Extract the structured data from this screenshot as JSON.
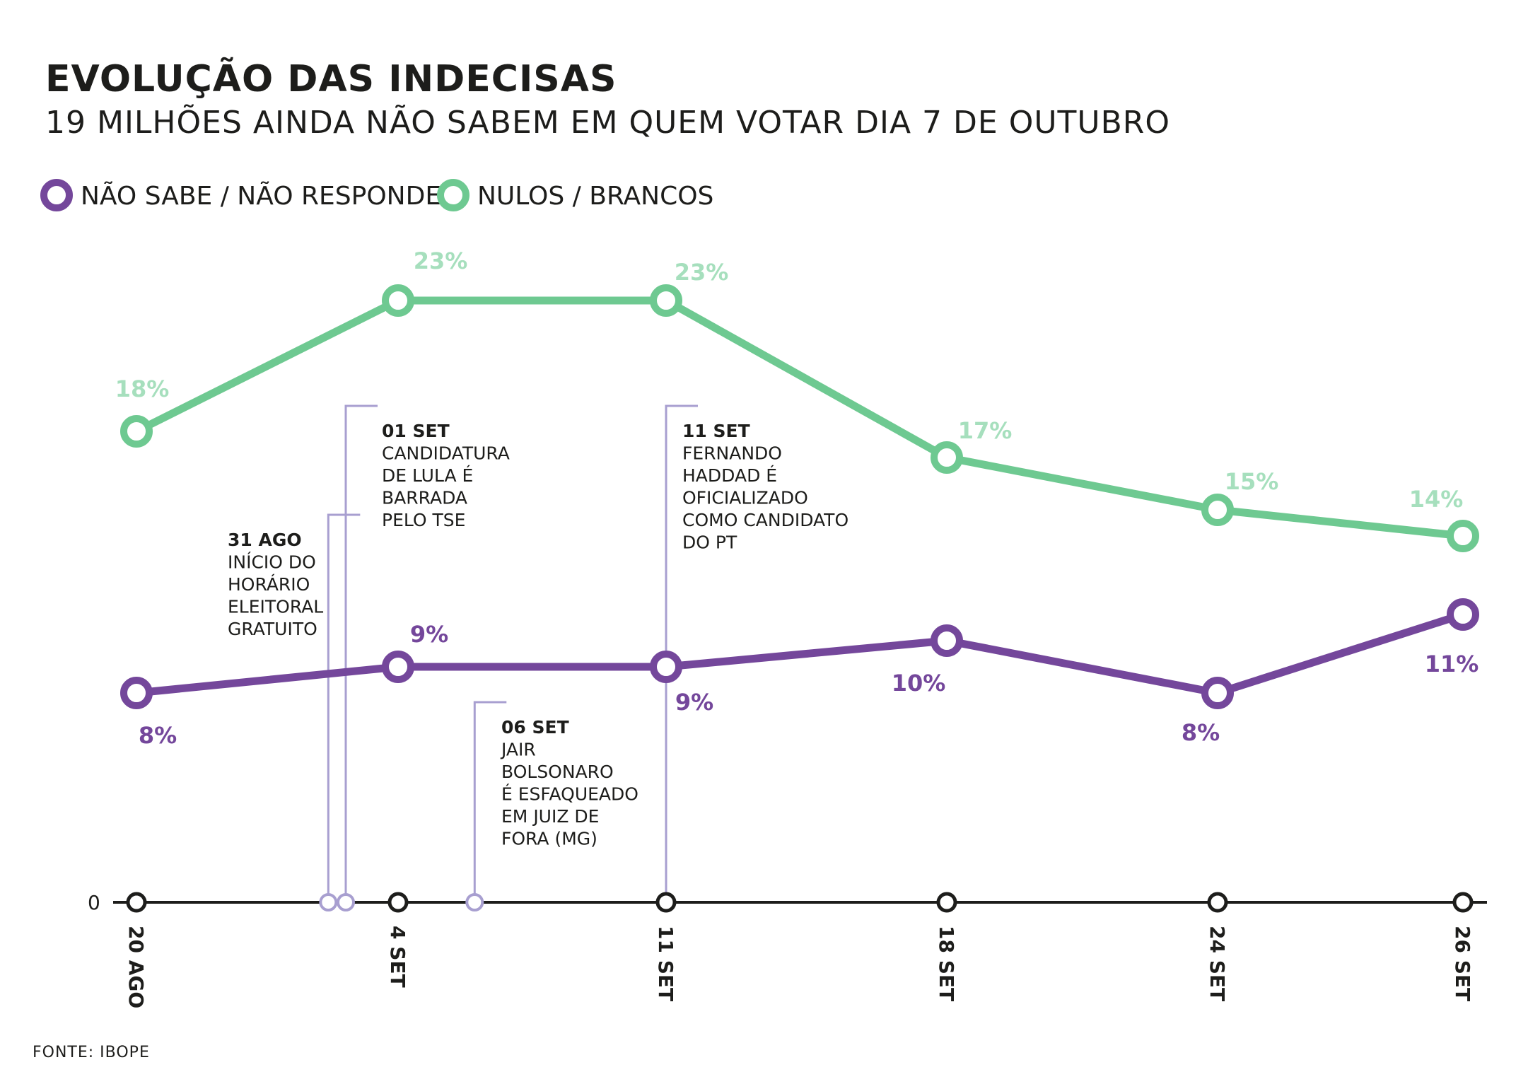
{
  "title": "EVOLUÇÃO DAS INDECISAS",
  "subtitle": "19 MILHÕES AINDA NÃO SABEM EM QUEM VOTAR DIA 7 DE OUTUBRO",
  "source": "FONTE: IBOPE",
  "colors": {
    "purple": "#74479b",
    "green": "#6ec991",
    "green_label": "#a6dfbd",
    "annotation": "#a89fd0",
    "axis": "#1d1d1b"
  },
  "chart_data": {
    "type": "line",
    "x_labels": [
      "20 AGO",
      "4 SET",
      "11 SET",
      "18 SET",
      "24 SET",
      "26 SET"
    ],
    "x_dates": [
      "2018-08-20",
      "2018-09-04",
      "2018-09-11",
      "2018-09-18",
      "2018-09-24",
      "2018-09-26"
    ],
    "y_zero_label": "0",
    "series": [
      {
        "name": "NÃO SABE / NÃO RESPONDEU",
        "color": "#74479b",
        "values": [
          8,
          9,
          9,
          10,
          8,
          11
        ],
        "labels": [
          "8%",
          "9%",
          "9%",
          "10%",
          "8%",
          "11%"
        ]
      },
      {
        "name": "NULOS / BRANCOS",
        "color": "#6ec991",
        "values": [
          18,
          23,
          23,
          17,
          15,
          14
        ],
        "labels": [
          "18%",
          "23%",
          "23%",
          "17%",
          "15%",
          "14%"
        ]
      }
    ],
    "annotations": [
      {
        "date": "2018-08-31",
        "title": "31 AGO",
        "lines": [
          "INÍCIO DO",
          "HORÁRIO",
          "ELEITORAL",
          "GRATUITO"
        ]
      },
      {
        "date": "2018-09-01",
        "title": "01 SET",
        "lines": [
          "CANDIDATURA",
          "DE LULA É",
          "BARRADA",
          "PELO TSE"
        ]
      },
      {
        "date": "2018-09-06",
        "title": "06 SET",
        "lines": [
          "JAIR",
          "BOLSONARO",
          "É ESFAQUEADO",
          "EM JUIZ DE",
          "FORA (MG)"
        ]
      },
      {
        "date": "2018-09-11",
        "title": "11 SET",
        "lines": [
          "FERNANDO",
          "HADDAD É",
          "OFICIALIZADO",
          "COMO CANDIDATO",
          "DO PT"
        ]
      }
    ],
    "legend_position": "top-left",
    "grid": false
  }
}
